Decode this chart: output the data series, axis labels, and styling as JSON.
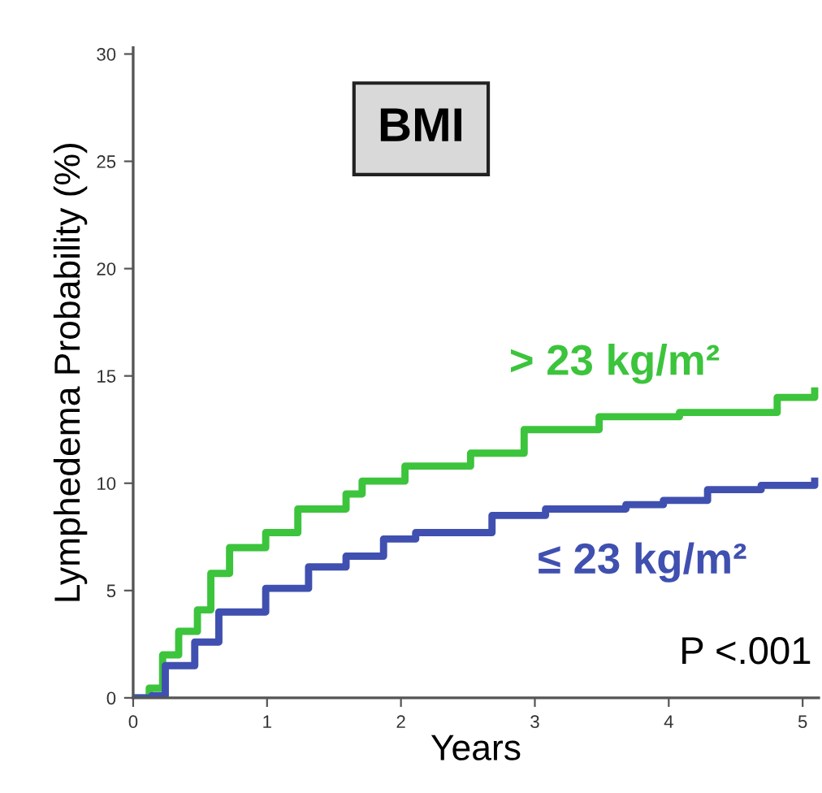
{
  "chart_data": {
    "type": "step",
    "title": "BMI",
    "xlabel": "Years",
    "ylabel": "Lymphedema Probability (%)",
    "xlim": [
      0,
      5.12
    ],
    "ylim": [
      0,
      30.3
    ],
    "xticks": [
      0,
      1,
      2,
      3,
      4,
      5
    ],
    "yticks": [
      0,
      5,
      10,
      15,
      20,
      25,
      30
    ],
    "grid": false,
    "legend": false,
    "series": [
      {
        "name": "> 23 kg/m²",
        "color": "#3cc43c",
        "x": [
          0,
          0.12,
          0.22,
          0.34,
          0.48,
          0.58,
          0.72,
          0.99,
          1.23,
          1.59,
          1.71,
          2.03,
          2.52,
          2.92,
          3.48,
          4.08,
          4.81,
          5.09
        ],
        "values": [
          0,
          0.45,
          2.0,
          3.1,
          4.1,
          5.8,
          7.0,
          7.7,
          8.8,
          9.5,
          10.1,
          10.8,
          11.4,
          12.5,
          13.1,
          13.3,
          14.0,
          14.3
        ]
      },
      {
        "name": "≤ 23 kg/m²",
        "color": "#4050b0",
        "x": [
          0,
          0.14,
          0.24,
          0.46,
          0.64,
          0.99,
          1.31,
          1.59,
          1.87,
          2.11,
          2.68,
          3.08,
          3.68,
          3.96,
          4.29,
          4.69,
          5.09
        ],
        "values": [
          0,
          0.1,
          1.5,
          2.6,
          4.0,
          5.1,
          6.1,
          6.6,
          7.4,
          7.7,
          8.5,
          8.8,
          9.0,
          9.2,
          9.7,
          9.9,
          10.1
        ]
      }
    ],
    "annotations": [
      "P <.001"
    ]
  }
}
